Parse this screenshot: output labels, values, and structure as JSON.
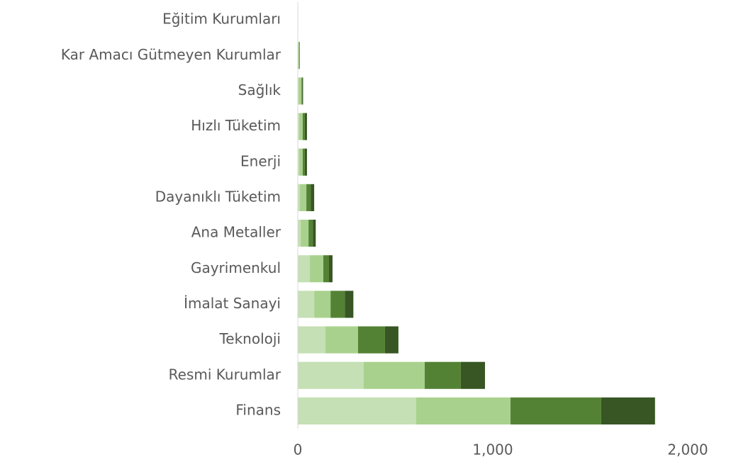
{
  "chart_data": {
    "type": "stacked-barh",
    "categories": [
      "Eğitim Kurumları",
      "Kar Amacı Gütmeyen Kurumlar",
      "Sağlık",
      "Hızlı Tüketim",
      "Enerji",
      "Dayanıklı Tüketim",
      "Ana Metaller",
      "Gayrimenkul",
      "İmalat Sanayi",
      "Teknoloji",
      "Resmi Kurumlar",
      "Finans"
    ],
    "series": [
      {
        "color": "#c5e0b4",
        "values": [
          1,
          2,
          4,
          7,
          7,
          11,
          15,
          62,
          84,
          142,
          338,
          607
        ]
      },
      {
        "color": "#a9d18e",
        "values": [
          1,
          4,
          15,
          18,
          18,
          33,
          40,
          69,
          84,
          167,
          313,
          484
        ]
      },
      {
        "color": "#548235",
        "values": [
          0,
          2,
          4,
          11,
          11,
          22,
          22,
          29,
          73,
          138,
          185,
          465
        ]
      },
      {
        "color": "#375623",
        "values": [
          0,
          2,
          4,
          11,
          11,
          18,
          15,
          18,
          44,
          69,
          124,
          276
        ]
      }
    ],
    "xlim": [
      0,
      2000
    ],
    "xticks": [
      0,
      {
        "value": 1000,
        "label": "1,000"
      },
      {
        "value": 2000,
        "label": "2,000"
      }
    ]
  }
}
